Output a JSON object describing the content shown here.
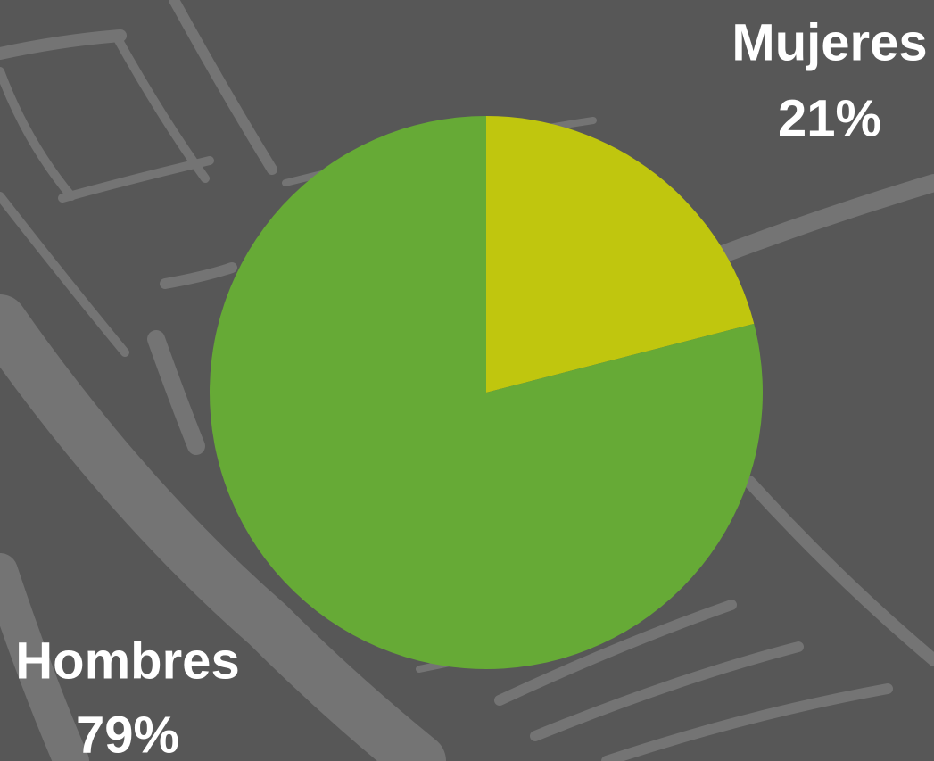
{
  "chart_data": {
    "type": "pie",
    "categories": [
      "Mujeres",
      "Hombres"
    ],
    "values": [
      21,
      79
    ],
    "value_labels": [
      "21%",
      "79%"
    ],
    "colors": [
      "#c0c60e",
      "#66aa36"
    ]
  }
}
